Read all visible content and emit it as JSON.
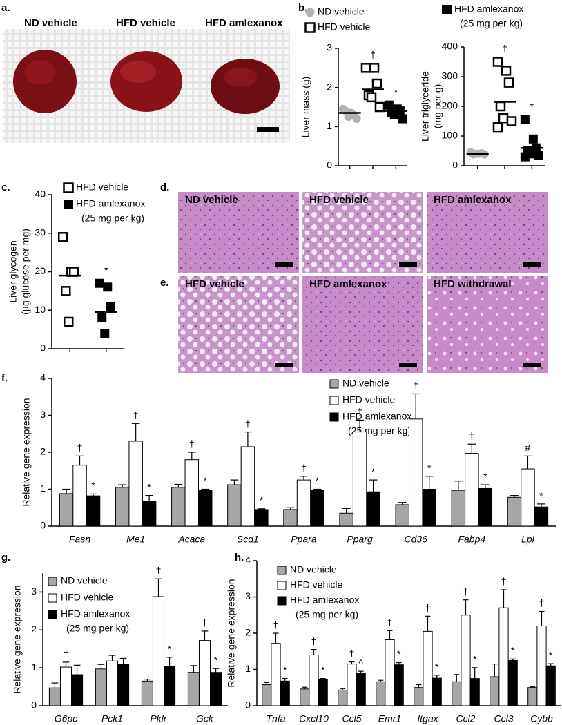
{
  "panel_labels": [
    "a.",
    "b.",
    "c.",
    "d.",
    "e.",
    "f.",
    "g.",
    "h."
  ],
  "photo_a_labels": [
    "ND vehicle",
    "HFD vehicle",
    "HFD amlexanox"
  ],
  "photo_d_labels": [
    "ND vehicle",
    "HFD vehicle",
    "HFD amlexanox"
  ],
  "photo_e_labels": [
    "HFD vehicle",
    "HFD amlexanox",
    "HFD withdrawal"
  ],
  "chart_data": [
    {
      "type": "dotplot",
      "ylabel": [
        "Liver mass (g)"
      ],
      "ylim": [
        0,
        3
      ],
      "yticks": [
        0,
        1,
        2,
        3
      ],
      "series": [
        {
          "name": "ND vehicle",
          "marker": "circle",
          "color": "#b3b3b3",
          "values": [
            1.45,
            1.35,
            1.3,
            1.4,
            1.25,
            1.2
          ],
          "mean": 1.35
        },
        {
          "name": "HFD vehicle",
          "marker": "open-square",
          "color": "#000000",
          "values": [
            2.5,
            2.5,
            2.1,
            1.8,
            1.75,
            1.5
          ],
          "mean": 1.95,
          "annotation": "†"
        },
        {
          "name": "HFD amlexanox",
          "dose": "(25 mg per kg)",
          "marker": "square",
          "color": "#000000",
          "values": [
            1.55,
            1.45,
            1.4,
            1.35,
            1.3,
            1.2
          ],
          "mean": 1.4,
          "annotation": "*"
        }
      ]
    },
    {
      "type": "dotplot",
      "ylabel": [
        "Liver triglyceride",
        "(mg per g)"
      ],
      "ylim": [
        0,
        400
      ],
      "yticks": [
        0,
        100,
        200,
        300,
        400
      ],
      "series": [
        {
          "marker": "circle",
          "color": "#b3b3b3",
          "values": [
            45,
            40,
            42,
            38,
            40,
            38
          ],
          "mean": 40
        },
        {
          "marker": "open-square",
          "color": "#000000",
          "values": [
            350,
            320,
            280,
            200,
            160,
            150,
            130
          ],
          "mean": 215,
          "annotation": "†"
        },
        {
          "marker": "square",
          "color": "#000000",
          "values": [
            155,
            90,
            60,
            50,
            40,
            35,
            30
          ],
          "mean": 60,
          "annotation": "*"
        }
      ]
    },
    {
      "type": "dotplot",
      "ylabel": [
        "Liver glycogen",
        "(µg glucose per mg)"
      ],
      "ylim": [
        0,
        40
      ],
      "yticks": [
        0,
        10,
        20,
        30,
        40
      ],
      "series": [
        {
          "name": "HFD vehicle",
          "marker": "open-square",
          "color": "#000000",
          "values": [
            29,
            20,
            20,
            15,
            7
          ],
          "mean": 19
        },
        {
          "name": "HFD amlexanox",
          "dose": "(25 mg per kg)",
          "marker": "square",
          "color": "#000000",
          "values": [
            17,
            16,
            11,
            8,
            4
          ],
          "mean": 9.5,
          "annotation": "*"
        }
      ]
    },
    {
      "type": "bar",
      "ylabel": [
        "Relative gene expression"
      ],
      "ylim": [
        0,
        4
      ],
      "yticks": [
        0,
        1,
        2,
        3,
        4
      ],
      "categories": [
        "Fasn",
        "Me1",
        "Acaca",
        "Scd1",
        "Ppara",
        "Pparg",
        "Cd36",
        "Fabp4",
        "Lpl"
      ],
      "series": [
        {
          "name": "ND vehicle",
          "color": "#a6a6a6",
          "values": [
            0.88,
            1.05,
            1.05,
            1.12,
            0.45,
            0.35,
            0.58,
            0.97,
            0.78
          ],
          "errors": [
            0.12,
            0.07,
            0.08,
            0.13,
            0.05,
            0.13,
            0.06,
            0.25,
            0.05
          ]
        },
        {
          "name": "HFD vehicle",
          "color": "#ffffff",
          "values": [
            1.65,
            2.3,
            1.8,
            2.15,
            1.25,
            2.55,
            2.9,
            1.97,
            1.55
          ],
          "errors": [
            0.25,
            0.48,
            0.2,
            0.4,
            0.1,
            0.32,
            0.68,
            0.25,
            0.35
          ],
          "annotations": [
            "†",
            "†",
            "†",
            "†",
            "†",
            "†",
            "†",
            "†",
            "#"
          ]
        },
        {
          "name": "HFD amlexanox",
          "dose": "(25 mg per kg)",
          "color": "#000000",
          "values": [
            0.82,
            0.68,
            0.98,
            0.45,
            0.98,
            0.93,
            1.0,
            1.02,
            0.52
          ],
          "errors": [
            0.05,
            0.15,
            0.02,
            0.02,
            0.02,
            0.32,
            0.35,
            0.1,
            0.08
          ],
          "annotations": [
            "*",
            "*",
            "*",
            "*",
            "*",
            "*",
            "*",
            "*",
            "*"
          ]
        }
      ]
    },
    {
      "type": "bar",
      "ylabel": [
        "Relative gene expression"
      ],
      "ylim": [
        0,
        3.5
      ],
      "yticks": [
        0,
        1,
        2,
        3
      ],
      "categories": [
        "G6pc",
        "Pck1",
        "Pklr",
        "Gck"
      ],
      "series": [
        {
          "name": "ND vehicle",
          "color": "#a6a6a6",
          "values": [
            0.47,
            0.97,
            0.65,
            0.88
          ],
          "errors": [
            0.13,
            0.12,
            0.05,
            0.18
          ]
        },
        {
          "name": "HFD vehicle",
          "color": "#ffffff",
          "values": [
            1.02,
            1.18,
            2.88,
            1.72
          ],
          "errors": [
            0.13,
            0.15,
            0.47,
            0.25
          ],
          "annotations": [
            "†",
            null,
            "†",
            "†"
          ]
        },
        {
          "name": "HFD amlexanox",
          "dose": "(25 mg per kg)",
          "color": "#000000",
          "values": [
            0.82,
            1.1,
            1.03,
            0.88
          ],
          "errors": [
            0.25,
            0.15,
            0.25,
            0.1
          ],
          "annotations": [
            null,
            null,
            "*",
            "*"
          ]
        }
      ]
    },
    {
      "type": "bar",
      "ylabel": [
        "Relative gene expression"
      ],
      "ylim": [
        0,
        4
      ],
      "yticks": [
        0,
        1,
        2,
        3,
        4
      ],
      "categories": [
        "Tnfa",
        "Cxcl10",
        "Ccl5",
        "Emr1",
        "Itgax",
        "Ccl2",
        "Ccl3",
        "Cybb"
      ],
      "series": [
        {
          "name": "ND vehicle",
          "color": "#a6a6a6",
          "values": [
            0.58,
            0.46,
            0.43,
            0.66,
            0.5,
            0.66,
            0.8,
            0.5
          ],
          "errors": [
            0.06,
            0.05,
            0.04,
            0.04,
            0.08,
            0.2,
            0.35,
            0.02
          ]
        },
        {
          "name": "HFD vehicle",
          "color": "#ffffff",
          "values": [
            1.72,
            1.4,
            1.15,
            1.82,
            2.05,
            2.5,
            2.7,
            2.2
          ],
          "errors": [
            0.28,
            0.15,
            0.06,
            0.25,
            0.42,
            0.42,
            0.5,
            0.4
          ],
          "annotations": [
            "†",
            "†",
            "†",
            "†",
            "†",
            "†",
            "†",
            "†"
          ]
        },
        {
          "name": "HFD amlexanox",
          "dose": "(25 mg per kg)",
          "color": "#000000",
          "values": [
            0.68,
            0.73,
            0.9,
            1.13,
            0.76,
            0.75,
            1.25,
            1.1
          ],
          "errors": [
            0.07,
            0.02,
            0.05,
            0.06,
            0.08,
            0.3,
            0.04,
            0.06
          ],
          "annotations": [
            "*",
            "*",
            "^",
            "*",
            "*",
            "*",
            "*",
            "*"
          ]
        }
      ]
    }
  ]
}
